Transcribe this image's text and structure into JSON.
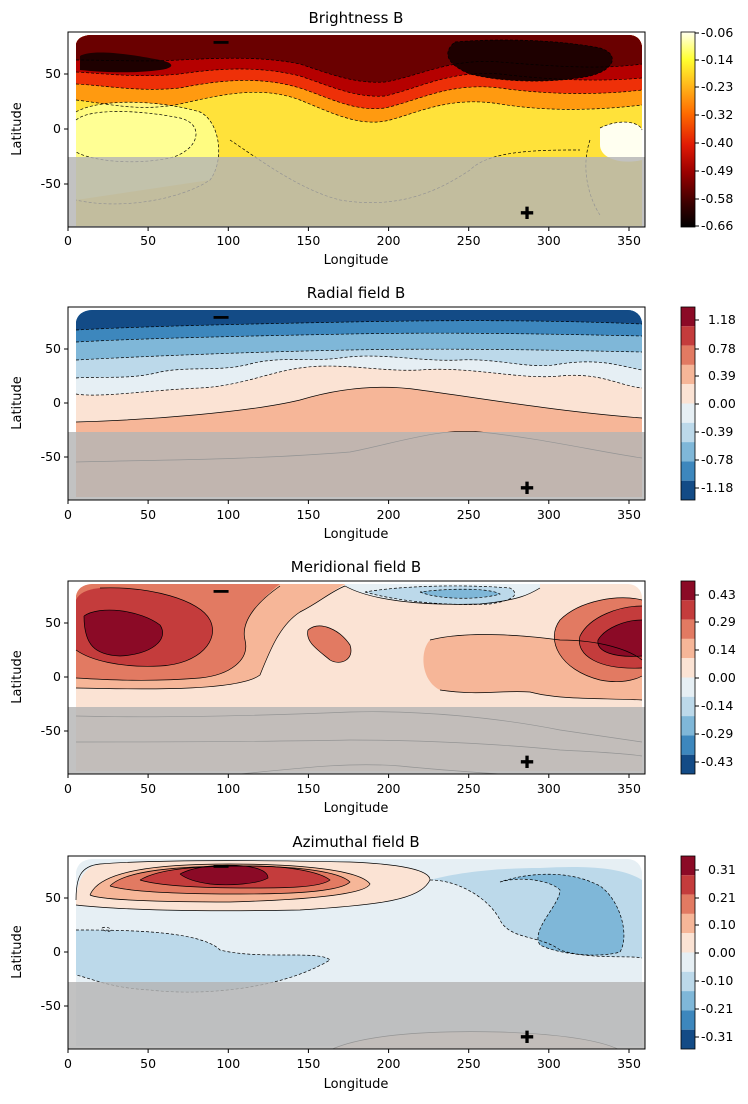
{
  "figure": {
    "description_type": "multi-panel filled contour maps",
    "marker_minus": "−",
    "marker_plus": "✚"
  },
  "chart_data": [
    {
      "id": "brightness",
      "type": "heatmap",
      "title": "Brightness B",
      "xlabel": "Longitude",
      "ylabel": "Latitude",
      "xlim": [
        0,
        360
      ],
      "ylim": [
        -90,
        90
      ],
      "xticks": [
        "0",
        "50",
        "100",
        "150",
        "200",
        "250",
        "300",
        "350"
      ],
      "yticks": [
        "50",
        "0",
        "-50"
      ],
      "colormap": "hot",
      "colorbar_range": [
        -0.66,
        -0.06
      ],
      "colorbar_ticks": [
        "-0.06",
        "-0.14",
        "-0.23",
        "-0.32",
        "-0.40",
        "-0.49",
        "-0.58",
        "-0.66"
      ],
      "colors": [
        "#fffff0",
        "#ffff8a",
        "#ffe23a",
        "#ff9a10",
        "#ee3008",
        "#b50000",
        "#6a0000",
        "#1e0000"
      ],
      "shaded_region": {
        "lat_max": -28,
        "color": "#b4b4b4"
      },
      "marker_minus": {
        "lon": 95,
        "lat": 78
      },
      "marker_plus": {
        "lon": 286,
        "lat": -78
      }
    },
    {
      "id": "radial",
      "type": "heatmap",
      "title": "Radial field B",
      "xlabel": "Longitude",
      "ylabel": "Latitude",
      "xlim": [
        0,
        360
      ],
      "ylim": [
        -90,
        90
      ],
      "xticks": [
        "0",
        "50",
        "100",
        "150",
        "200",
        "250",
        "300",
        "350"
      ],
      "yticks": [
        "50",
        "0",
        "-50"
      ],
      "colormap": "RdBu_r",
      "colorbar_range": [
        -1.38,
        1.38
      ],
      "colorbar_ticks": [
        "1.18",
        "0.78",
        "0.39",
        "0.00",
        "-0.39",
        "-0.78",
        "-1.18"
      ],
      "colors": [
        "#8b0a26",
        "#c43c3c",
        "#e27a62",
        "#f6b698",
        "#fbe3d4",
        "#e6eff4",
        "#bcd9ea",
        "#7fb7d8",
        "#3d87bd",
        "#134b86"
      ],
      "shaded_region": {
        "lat_max": -28,
        "color": "#b4b4b4"
      },
      "marker_minus": {
        "lon": 95,
        "lat": 78
      },
      "marker_plus": {
        "lon": 286,
        "lat": -78
      }
    },
    {
      "id": "meridional",
      "type": "heatmap",
      "title": "Meridional field B",
      "xlabel": "Longitude",
      "ylabel": "Latitude",
      "xlim": [
        0,
        360
      ],
      "ylim": [
        -90,
        90
      ],
      "xticks": [
        "0",
        "50",
        "100",
        "150",
        "200",
        "250",
        "300",
        "350"
      ],
      "yticks": [
        "50",
        "0",
        "-50"
      ],
      "colormap": "RdBu_r",
      "colorbar_range": [
        -0.5,
        0.5
      ],
      "colorbar_ticks": [
        "0.43",
        "0.29",
        "0.14",
        "0.00",
        "-0.14",
        "-0.29",
        "-0.43"
      ],
      "colors": [
        "#8b0a26",
        "#c43c3c",
        "#e27a62",
        "#f6b698",
        "#fbe3d4",
        "#e6eff4",
        "#bcd9ea",
        "#7fb7d8",
        "#3d87bd",
        "#134b86"
      ],
      "shaded_region": {
        "lat_max": -28,
        "color": "#b4b4b4"
      },
      "marker_minus": {
        "lon": 95,
        "lat": 78
      },
      "marker_plus": {
        "lon": 286,
        "lat": -78
      }
    },
    {
      "id": "azimuthal",
      "type": "heatmap",
      "title": "Azimuthal field B",
      "xlabel": "Longitude",
      "ylabel": "Latitude",
      "xlim": [
        0,
        360
      ],
      "ylim": [
        -90,
        90
      ],
      "xticks": [
        "0",
        "50",
        "100",
        "150",
        "200",
        "250",
        "300",
        "350"
      ],
      "yticks": [
        "50",
        "0",
        "-50"
      ],
      "colormap": "RdBu_r",
      "colorbar_range": [
        -0.36,
        0.36
      ],
      "colorbar_ticks": [
        "0.31",
        "0.21",
        "0.10",
        "0.00",
        "-0.10",
        "-0.21",
        "-0.31"
      ],
      "colors": [
        "#8b0a26",
        "#c43c3c",
        "#e27a62",
        "#f6b698",
        "#fbe3d4",
        "#e6eff4",
        "#bcd9ea",
        "#7fb7d8",
        "#3d87bd",
        "#134b86"
      ],
      "shaded_region": {
        "lat_max": -28,
        "color": "#b4b4b4"
      },
      "marker_minus": {
        "lon": 95,
        "lat": 78
      },
      "marker_plus": {
        "lon": 286,
        "lat": -78
      }
    }
  ]
}
